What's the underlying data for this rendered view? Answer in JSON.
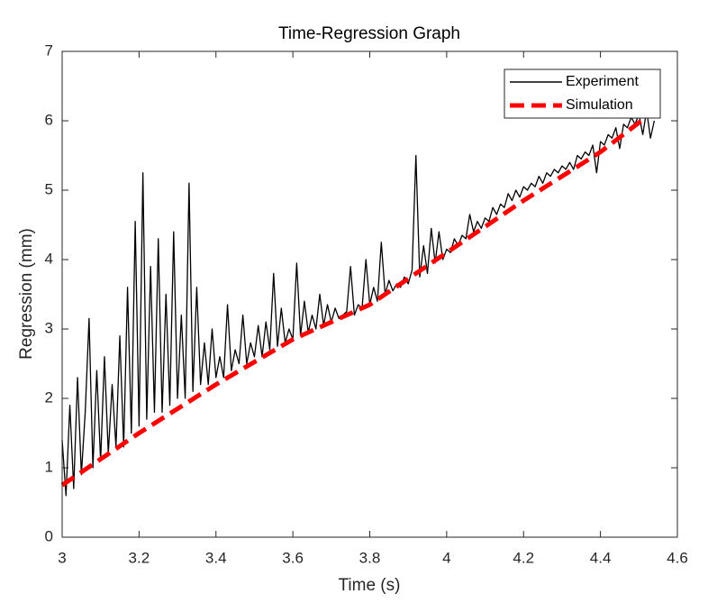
{
  "chart_data": {
    "type": "line",
    "title": "Time-Regression Graph",
    "x_label": "Time (s)",
    "y_label": "Regression (mm)",
    "xlim": [
      3,
      4.6
    ],
    "xticks": [
      3,
      3.2,
      3.4,
      3.6,
      3.8,
      4,
      4.2,
      4.4,
      4.6
    ],
    "ylim": [
      0,
      7
    ],
    "yticks": [
      0,
      1,
      2,
      3,
      4,
      5,
      6,
      7
    ],
    "legend": "upper right",
    "series": [
      {
        "name": "Experiment",
        "color": "#000000",
        "style": "solid",
        "x": [
          3.0,
          3.01,
          3.02,
          3.03,
          3.04,
          3.05,
          3.06,
          3.07,
          3.08,
          3.09,
          3.1,
          3.11,
          3.12,
          3.13,
          3.14,
          3.15,
          3.16,
          3.17,
          3.18,
          3.19,
          3.2,
          3.21,
          3.22,
          3.23,
          3.24,
          3.25,
          3.26,
          3.27,
          3.28,
          3.29,
          3.3,
          3.31,
          3.32,
          3.33,
          3.34,
          3.35,
          3.36,
          3.37,
          3.38,
          3.39,
          3.4,
          3.41,
          3.42,
          3.43,
          3.44,
          3.45,
          3.46,
          3.47,
          3.48,
          3.49,
          3.5,
          3.51,
          3.52,
          3.53,
          3.54,
          3.55,
          3.56,
          3.57,
          3.58,
          3.59,
          3.6,
          3.61,
          3.62,
          3.63,
          3.64,
          3.65,
          3.66,
          3.67,
          3.68,
          3.69,
          3.7,
          3.71,
          3.72,
          3.73,
          3.74,
          3.75,
          3.76,
          3.77,
          3.78,
          3.79,
          3.8,
          3.81,
          3.82,
          3.83,
          3.84,
          3.85,
          3.86,
          3.87,
          3.88,
          3.89,
          3.9,
          3.91,
          3.92,
          3.93,
          3.94,
          3.95,
          3.96,
          3.97,
          3.98,
          3.99,
          4.0,
          4.01,
          4.02,
          4.03,
          4.04,
          4.05,
          4.06,
          4.07,
          4.08,
          4.09,
          4.1,
          4.11,
          4.12,
          4.13,
          4.14,
          4.15,
          4.16,
          4.17,
          4.18,
          4.19,
          4.2,
          4.21,
          4.22,
          4.23,
          4.24,
          4.25,
          4.26,
          4.27,
          4.28,
          4.29,
          4.3,
          4.31,
          4.32,
          4.33,
          4.34,
          4.35,
          4.36,
          4.37,
          4.38,
          4.39,
          4.4,
          4.41,
          4.42,
          4.43,
          4.44,
          4.45,
          4.46,
          4.47,
          4.48,
          4.49,
          4.5,
          4.51,
          4.52,
          4.53,
          4.54
        ],
        "values": [
          1.4,
          0.6,
          1.9,
          0.7,
          2.3,
          0.9,
          1.8,
          3.15,
          1.0,
          2.4,
          1.1,
          2.6,
          1.2,
          2.2,
          1.3,
          2.9,
          1.3,
          3.6,
          1.5,
          4.55,
          1.6,
          5.25,
          1.7,
          3.9,
          1.8,
          4.3,
          1.8,
          3.5,
          1.9,
          4.4,
          2.0,
          3.2,
          2.0,
          5.1,
          2.1,
          3.6,
          2.2,
          2.8,
          2.2,
          3.0,
          2.3,
          2.6,
          2.3,
          3.35,
          2.4,
          2.7,
          2.5,
          3.2,
          2.5,
          2.8,
          2.6,
          3.05,
          2.6,
          3.1,
          2.7,
          3.8,
          2.75,
          3.3,
          2.8,
          3.0,
          2.85,
          3.95,
          2.9,
          3.4,
          2.95,
          3.2,
          3.0,
          3.5,
          3.05,
          3.35,
          3.1,
          3.3,
          3.15,
          3.2,
          3.25,
          3.9,
          3.2,
          3.35,
          3.3,
          4.0,
          3.35,
          3.6,
          3.4,
          4.25,
          3.5,
          3.7,
          3.55,
          3.65,
          3.6,
          3.75,
          3.65,
          3.85,
          5.5,
          3.75,
          4.2,
          3.8,
          4.45,
          3.95,
          4.4,
          4.0,
          4.15,
          4.1,
          4.3,
          4.2,
          4.35,
          4.3,
          4.65,
          4.4,
          4.55,
          4.45,
          4.6,
          4.55,
          4.75,
          4.65,
          4.8,
          4.75,
          4.95,
          4.85,
          5.0,
          4.9,
          5.05,
          5.0,
          5.1,
          5.05,
          5.2,
          5.1,
          5.25,
          5.2,
          5.3,
          5.25,
          5.35,
          5.3,
          5.4,
          5.3,
          5.5,
          5.45,
          5.55,
          5.5,
          5.65,
          5.25,
          5.7,
          5.65,
          5.8,
          5.75,
          5.9,
          5.6,
          5.95,
          5.9,
          6.05,
          5.95,
          6.1,
          5.8,
          6.15,
          5.75,
          6.0
        ]
      },
      {
        "name": "Simulation",
        "color": "#ff0000",
        "style": "dashed",
        "x": [
          3.0,
          3.2,
          3.4,
          3.6,
          3.8,
          4.0,
          4.2,
          4.4,
          4.53
        ],
        "values": [
          0.75,
          1.5,
          2.2,
          2.85,
          3.35,
          4.1,
          4.85,
          5.55,
          6.1
        ]
      }
    ]
  }
}
